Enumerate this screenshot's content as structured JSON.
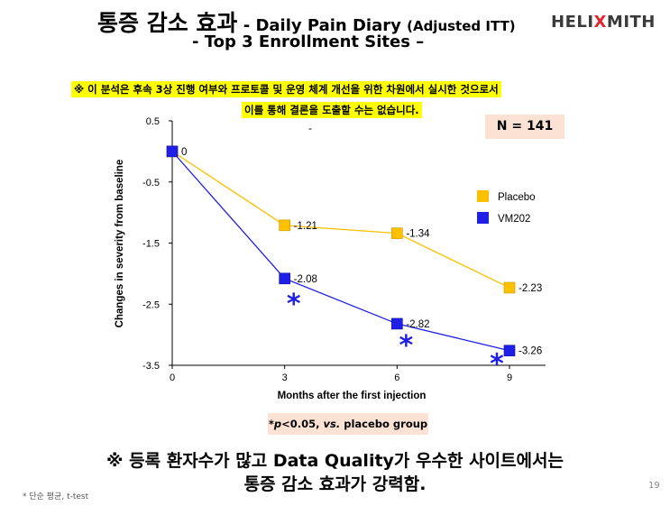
{
  "header": {
    "title_ko": "통증 감소 효과",
    "title_sep": " - ",
    "title_en": "Daily Pain Diary ",
    "title_en_small": "(Adjusted ITT)",
    "subtitle": "-    Top 3 Enrollment Sites –",
    "logo_left": "HELI",
    "logo_x": "X",
    "logo_right": "MITH"
  },
  "notes": {
    "line1": "※ 이 분석은 후속 3상 진행 여부와 프로토콜 및 운영 체계 개선을 위한 차원에서 실시한 것으로서",
    "line2": "이를 통해 결론을 도출할 수는 없습니다."
  },
  "n_label": "N = 141",
  "chart_data": {
    "type": "line",
    "x": [
      0,
      3,
      6,
      9
    ],
    "xticks": [
      "0",
      "3",
      "6",
      "9"
    ],
    "yticks": [
      "0.5",
      "-0.5",
      "-1.5",
      "-2.5",
      "-3.5"
    ],
    "ylim": [
      -3.5,
      0.5
    ],
    "xlim": [
      0,
      9
    ],
    "xlabel": "Months after the first injection",
    "ylabel": "Changes in severity from baseline",
    "dash_mark": "-",
    "grid": false,
    "legend_position": "right",
    "series": [
      {
        "name": "Placebo",
        "color": "#ffc000",
        "values": [
          0,
          -1.21,
          -1.34,
          -2.23
        ],
        "labels": [
          "",
          "-1.21",
          "-1.34",
          "-2.23"
        ]
      },
      {
        "name": "VM202",
        "color": "#1f1fe8",
        "values": [
          0,
          -2.08,
          -2.82,
          -3.26
        ],
        "labels": [
          "0",
          "-2.08",
          "-2.82",
          "-3.26"
        ]
      }
    ],
    "significance_marker": "*",
    "significance_x": [
      3,
      6,
      9
    ],
    "footnote": "*p<0.05, vs. placebo group",
    "footnote_p": "*p",
    "footnote_mid": "<0.05, ",
    "footnote_vs": "vs.",
    "footnote_end": " placebo group"
  },
  "conclusion": {
    "line1": "※ 등록 환자수가 많고 Data Quality가 우수한 사이트에서는",
    "line2": "통증 감소 효과가 강력함."
  },
  "footnote": "* 단순 평균, t-test",
  "page_number": "19"
}
